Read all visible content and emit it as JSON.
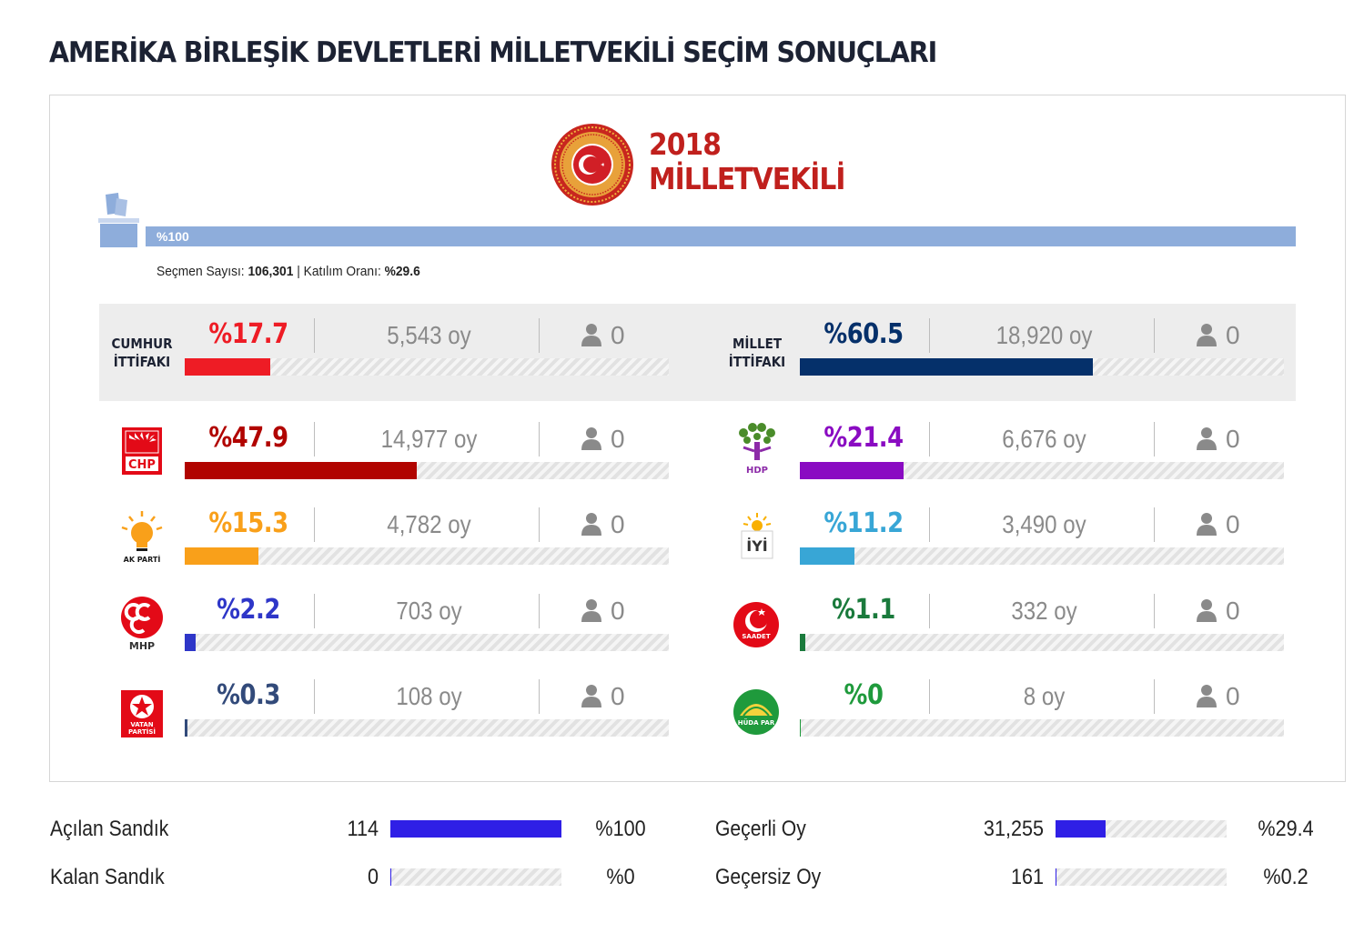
{
  "page": {
    "title": "AMERİKA BİRLEŞİK DEVLETLERİ MİLLETVEKİLİ SEÇİM SONUÇLARI"
  },
  "header": {
    "year": "2018",
    "election_type": "MİLLETVEKİLİ",
    "seal_text_top": "TÜRKİYE BÜYÜK",
    "seal_text_bottom": "MİLLET MECLİSİ",
    "seal_text_side": "1920"
  },
  "opened_total": {
    "label": "%100",
    "value": 100
  },
  "voter_info": {
    "voters_label": "Seçmen Sayısı:",
    "voters_value": "106,301",
    "separator": "|",
    "turnout_label": "Katılım Oranı:",
    "turnout_value": "%29.6"
  },
  "alliances": [
    {
      "name_line1": "CUMHUR",
      "name_line2": "İTTİFAKI",
      "pct_label": "%17.7",
      "pct": 17.7,
      "votes": "5,543 oy",
      "seats": "0",
      "color": "#ee1c25"
    },
    {
      "name_line1": "MİLLET",
      "name_line2": "İTTİFAKI",
      "pct_label": "%60.5",
      "pct": 60.5,
      "votes": "18,920 oy",
      "seats": "0",
      "color": "#05306a"
    }
  ],
  "parties": [
    {
      "name": "CHP",
      "logo_text": "CHP",
      "pct_label": "%47.9",
      "pct": 47.9,
      "votes": "14,977 oy",
      "seats": "0",
      "color": "#b10400"
    },
    {
      "name": "HDP",
      "logo_text": "HDP",
      "pct_label": "%21.4",
      "pct": 21.4,
      "votes": "6,676 oy",
      "seats": "0",
      "color": "#8a0bc2"
    },
    {
      "name": "AK PARTİ",
      "logo_text": "AK PARTİ",
      "pct_label": "%15.3",
      "pct": 15.3,
      "votes": "4,782 oy",
      "seats": "0",
      "color": "#f9a01a"
    },
    {
      "name": "İYİ PARTİ",
      "logo_text": "İYİ",
      "pct_label": "%11.2",
      "pct": 11.2,
      "votes": "3,490 oy",
      "seats": "0",
      "color": "#38a6d6"
    },
    {
      "name": "MHP",
      "logo_text": "MHP",
      "pct_label": "%2.2",
      "pct": 2.2,
      "votes": "703 oy",
      "seats": "0",
      "color": "#2e36c8"
    },
    {
      "name": "SAADET",
      "logo_text": "SAADET",
      "pct_label": "%1.1",
      "pct": 1.1,
      "votes": "332 oy",
      "seats": "0",
      "color": "#1a7a3c"
    },
    {
      "name": "VATAN PARTİSİ",
      "logo_text_line1": "VATAN",
      "logo_text_line2": "PARTİSİ",
      "pct_label": "%0.3",
      "pct": 0.3,
      "votes": "108 oy",
      "seats": "0",
      "color": "#324a7a"
    },
    {
      "name": "HÜDA PAR",
      "logo_text": "HÜDA PAR",
      "pct_label": "%0",
      "pct": 0,
      "votes": "8 oy",
      "seats": "0",
      "color": "#1f9a3c"
    }
  ],
  "ballot_stats": [
    {
      "label": "Açılan Sandık",
      "value": "114",
      "pct_label": "%100",
      "pct": 100
    },
    {
      "label": "Kalan Sandık",
      "value": "0",
      "pct_label": "%0",
      "pct": 0
    }
  ],
  "vote_stats": [
    {
      "label": "Geçerli Oy",
      "value": "31,255",
      "pct_label": "%29.4",
      "pct": 29.4
    },
    {
      "label": "Geçersiz Oy",
      "value": "161",
      "pct_label": "%0.2",
      "pct": 0.2
    }
  ]
}
